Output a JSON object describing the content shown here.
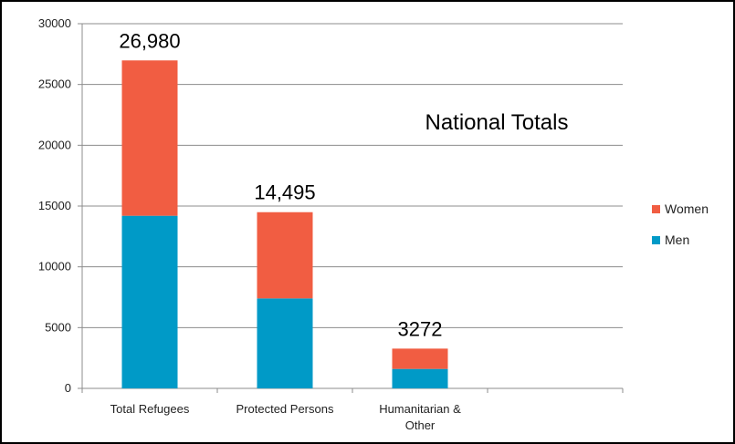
{
  "chart_data": {
    "type": "bar",
    "stacked": true,
    "title": "National Totals",
    "categories": [
      "Total Refugees",
      "Protected Persons",
      "Humanitarian & Other",
      ""
    ],
    "category_lines": [
      [
        "Total Refugees"
      ],
      [
        "Protected Persons"
      ],
      [
        "Humanitarian &",
        "Other"
      ],
      []
    ],
    "series": [
      {
        "name": "Men",
        "color": "#009ac7",
        "values": [
          14200,
          7400,
          1600,
          null
        ]
      },
      {
        "name": "Women",
        "color": "#f15d42",
        "values": [
          12780,
          7095,
          1672,
          null
        ]
      }
    ],
    "totals": [
      "26,980",
      "14,495",
      "3272",
      ""
    ],
    "ylim": [
      0,
      30000
    ],
    "yticks": [
      0,
      5000,
      10000,
      15000,
      20000,
      25000,
      30000
    ],
    "grid": true,
    "legend_position": "right",
    "legend_order": [
      "Women",
      "Men"
    ]
  }
}
